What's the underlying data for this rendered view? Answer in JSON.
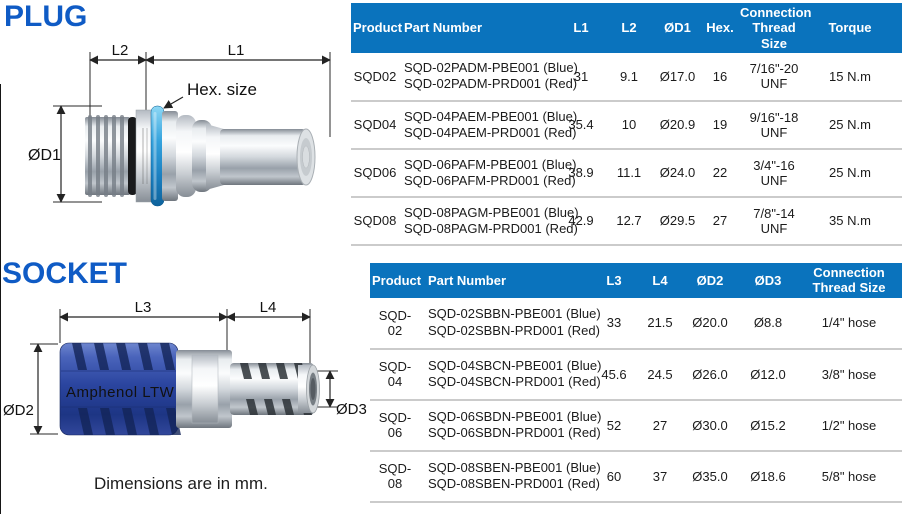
{
  "note": "Dimensions are in mm.",
  "colors": {
    "table_header_bg": "#0a73bd",
    "section_title_blue": "#0f5bc5",
    "plug_ring_blue": "#2f9fdc",
    "socket_sleeve_blue": "#2b459f",
    "row_divider_gray": "#cbcbcb"
  },
  "plug": {
    "title": "PLUG",
    "diagram": {
      "l1": "L1",
      "l2": "L2",
      "d1": "ØD1",
      "hex_label": "Hex. size"
    },
    "table": {
      "headers": [
        "Product",
        "Part Number",
        "L1",
        "L2",
        "ØD1",
        "Hex.",
        "Connection Thread Size",
        "Torque"
      ],
      "rows": [
        {
          "product": "SQD02",
          "parts": [
            "SQD-02PADM-PBE001 (Blue)",
            "SQD-02PADM-PRD001 (Red)"
          ],
          "l1": "31",
          "l2": "9.1",
          "d1": "Ø17.0",
          "hex": "16",
          "thread": "7/16\"-20 UNF",
          "torque": "15 N.m"
        },
        {
          "product": "SQD04",
          "parts": [
            "SQD-04PAEM-PBE001 (Blue)",
            "SQD-04PAEM-PRD001 (Red)"
          ],
          "l1": "35.4",
          "l2": "10",
          "d1": "Ø20.9",
          "hex": "19",
          "thread": "9/16\"-18 UNF",
          "torque": "25 N.m"
        },
        {
          "product": "SQD06",
          "parts": [
            "SQD-06PAFM-PBE001 (Blue)",
            "SQD-06PAFM-PRD001 (Red)"
          ],
          "l1": "38.9",
          "l2": "11.1",
          "d1": "Ø24.0",
          "hex": "22",
          "thread": "3/4\"-16 UNF",
          "torque": "25 N.m"
        },
        {
          "product": "SQD08",
          "parts": [
            "SQD-08PAGM-PBE001 (Blue)",
            "SQD-08PAGM-PRD001 (Red)"
          ],
          "l1": "42.9",
          "l2": "12.7",
          "d1": "Ø29.5",
          "hex": "27",
          "thread": "7/8\"-14 UNF",
          "torque": "35 N.m"
        }
      ]
    }
  },
  "socket": {
    "title": "SOCKET",
    "diagram": {
      "l3": "L3",
      "l4": "L4",
      "d2": "ØD2",
      "d3": "ØD3",
      "brand": "Amphenol LTW"
    },
    "table": {
      "headers": [
        "Product",
        "Part Number",
        "L3",
        "L4",
        "ØD2",
        "ØD3",
        "Connection Thread Size"
      ],
      "rows": [
        {
          "product": "SQD-02",
          "parts": [
            "SQD-02SBBN-PBE001 (Blue)",
            "SQD-02SBBN-PRD001 (Red)"
          ],
          "l3": "33",
          "l4": "21.5",
          "d2": "Ø20.0",
          "d3": "Ø8.8",
          "thread": "1/4\" hose"
        },
        {
          "product": "SQD-04",
          "parts": [
            "SQD-04SBCN-PBE001 (Blue)",
            "SQD-04SBCN-PRD001 (Red)"
          ],
          "l3": "45.6",
          "l4": "24.5",
          "d2": "Ø26.0",
          "d3": "Ø12.0",
          "thread": "3/8\" hose"
        },
        {
          "product": "SQD-06",
          "parts": [
            "SQD-06SBDN-PBE001 (Blue)",
            "SQD-06SBDN-PRD001 (Red)"
          ],
          "l3": "52",
          "l4": "27",
          "d2": "Ø30.0",
          "d3": "Ø15.2",
          "thread": "1/2\" hose"
        },
        {
          "product": "SQD-08",
          "parts": [
            "SQD-08SBEN-PBE001 (Blue)",
            "SQD-08SBEN-PRD001 (Red)"
          ],
          "l3": "60",
          "l4": "37",
          "d2": "Ø35.0",
          "d3": "Ø18.6",
          "thread": "5/8\" hose"
        }
      ]
    }
  }
}
